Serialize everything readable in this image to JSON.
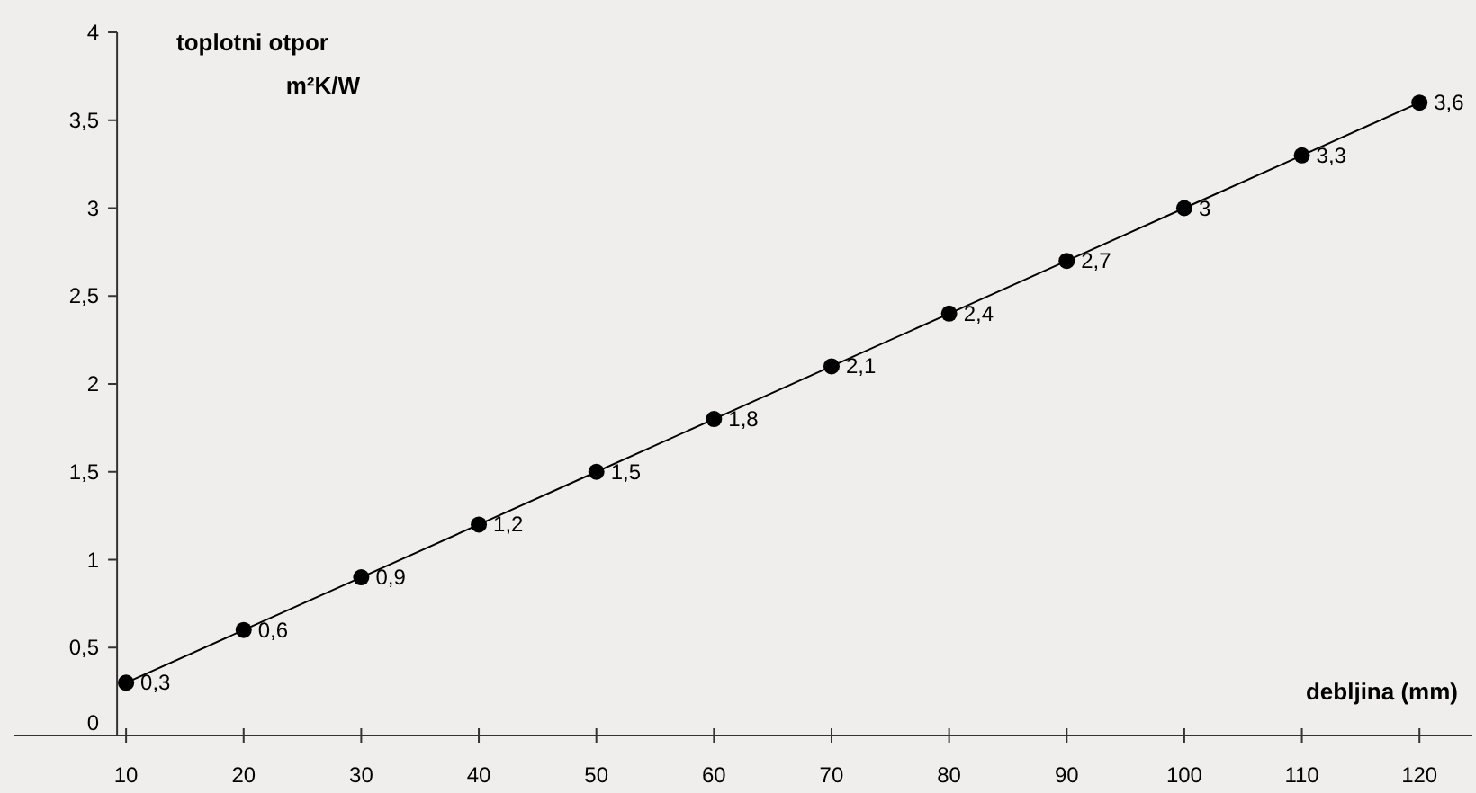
{
  "chart_data": {
    "type": "line",
    "xlabel": "debljina (mm)",
    "ylabel": "toplotni otpor m²K/W",
    "x": [
      10,
      20,
      30,
      40,
      50,
      60,
      70,
      80,
      90,
      100,
      110,
      120
    ],
    "series": [
      {
        "color": "#000000",
        "values": [
          0.3,
          0.6,
          0.9,
          1.2,
          1.5,
          1.8,
          2.1,
          2.4,
          2.7,
          3,
          3.3,
          3.6
        ],
        "value_labels": [
          "0,3",
          "0,6",
          "0,9",
          "1,2",
          "1,5",
          "1,8",
          "2,1",
          "2,4",
          "2,7",
          "3",
          "3,3",
          "3,6"
        ]
      }
    ],
    "xlim": [
      0.5,
      124.5
    ],
    "xticks": [
      10,
      20,
      30,
      40,
      50,
      60,
      70,
      80,
      90,
      100,
      110,
      120
    ],
    "ylim": [
      0,
      4
    ],
    "yticks": [
      0,
      {
        "value": 0.5,
        "label": "0,5"
      },
      1,
      {
        "value": 1.5,
        "label": "1,5"
      },
      2,
      {
        "value": 2.5,
        "label": "2,5"
      },
      3,
      {
        "value": 3.5,
        "label": "3,5"
      },
      4
    ],
    "marker": "circle",
    "line_style": "solid"
  }
}
